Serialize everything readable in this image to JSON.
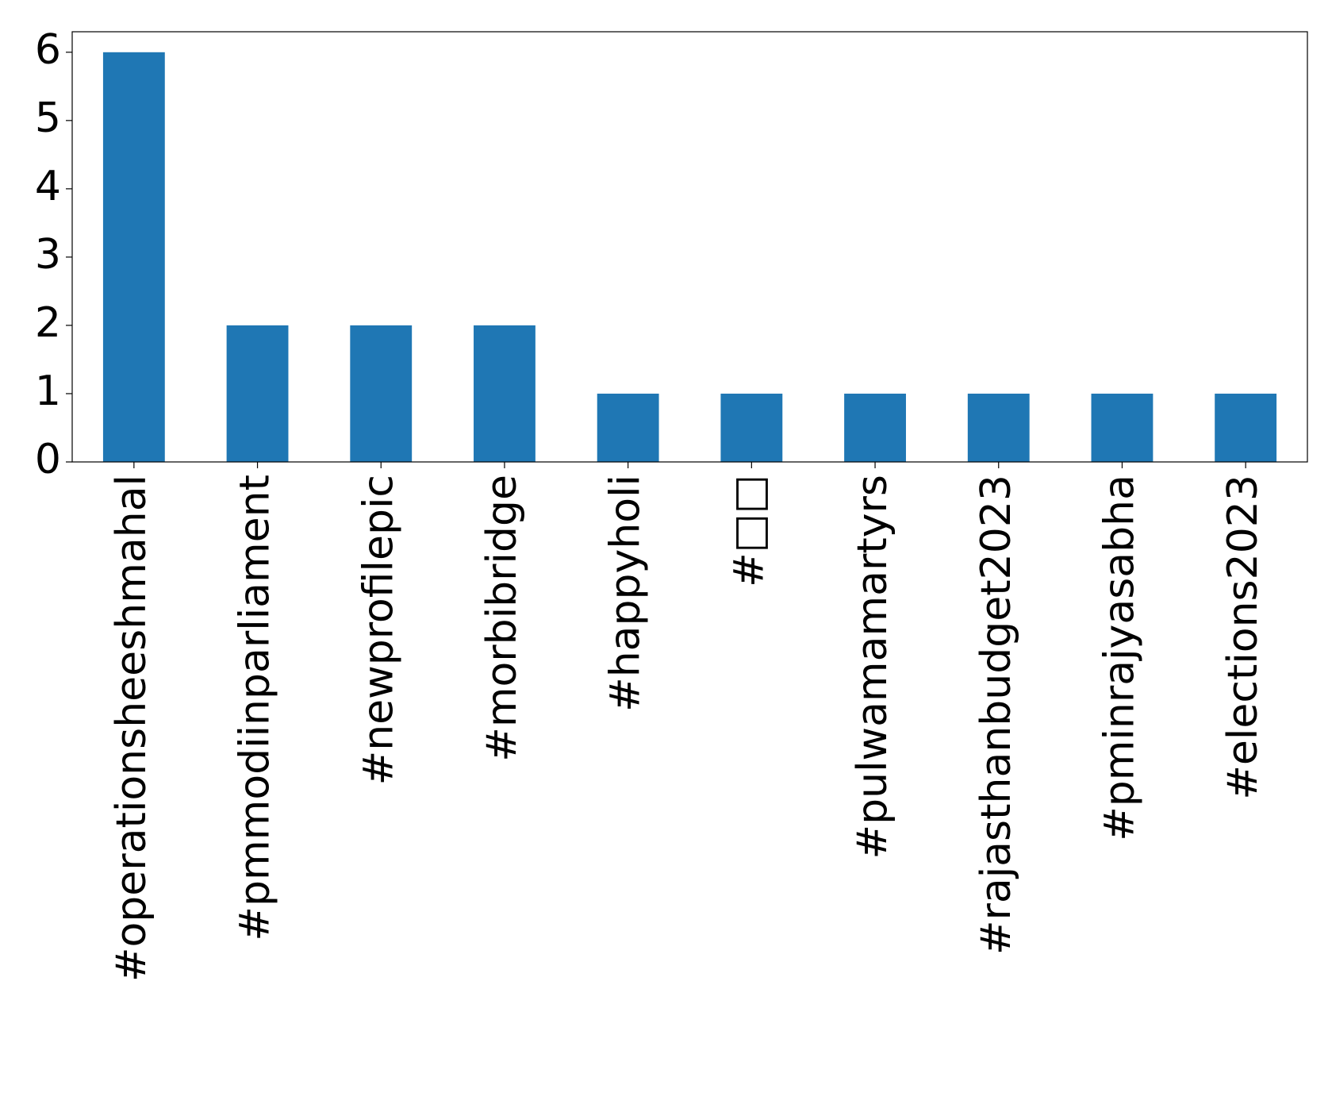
{
  "chart_data": {
    "type": "bar",
    "categories": [
      "#operationsheeshmahal",
      "#pmmodiinparliament",
      "#newprofilepic",
      "#morbibridge",
      "#happyholi",
      "#□□",
      "#pulwamamartyrs",
      "#rajasthanbudget2023",
      "#pminrajyasabha",
      "#elections2023"
    ],
    "values": [
      6,
      2,
      2,
      2,
      1,
      1,
      1,
      1,
      1,
      1
    ],
    "color": "#1f77b4",
    "ylim": [
      0,
      6.3
    ],
    "yticks": [
      0,
      1,
      2,
      3,
      4,
      5,
      6
    ],
    "grid": false
  }
}
